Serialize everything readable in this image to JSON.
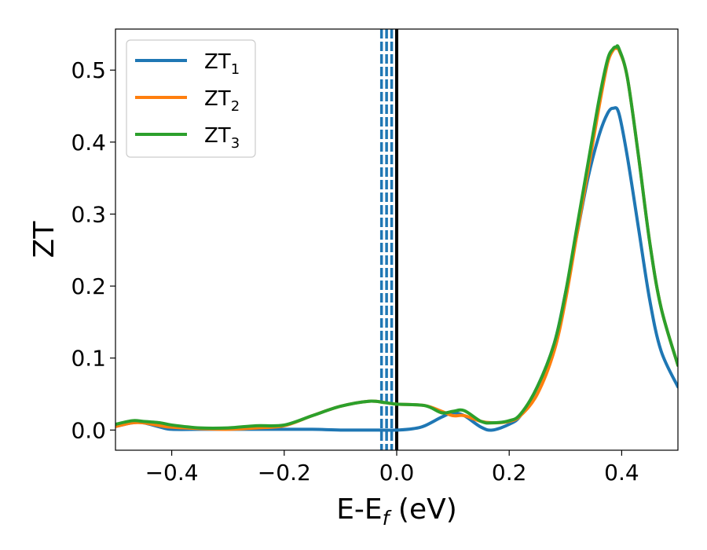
{
  "chart_data": {
    "type": "line",
    "xlabel": {
      "main": "E-E",
      "sub": "f",
      "unit": " (eV)"
    },
    "ylabel": "ZT",
    "xlim": [
      -0.5,
      0.5
    ],
    "ylim": [
      -0.028,
      0.557
    ],
    "xticks": [
      -0.4,
      -0.2,
      0.0,
      0.2,
      0.4
    ],
    "xtick_labels": [
      "−0.4",
      "−0.2",
      "0.0",
      "0.2",
      "0.4"
    ],
    "yticks": [
      0.0,
      0.1,
      0.2,
      0.3,
      0.4,
      0.5
    ],
    "ytick_labels": [
      "0.0",
      "0.1",
      "0.2",
      "0.3",
      "0.4",
      "0.5"
    ],
    "grid": false,
    "legend_position": "top-left",
    "vertical_lines": [
      {
        "x": -0.027,
        "style": "dashed",
        "color": "#1f77b4"
      },
      {
        "x": -0.018,
        "style": "dashed",
        "color": "#1f77b4"
      },
      {
        "x": -0.009,
        "style": "dashed",
        "color": "#1f77b4"
      },
      {
        "x": 0.0,
        "style": "solid",
        "color": "#000000"
      }
    ],
    "series": [
      {
        "name": "ZT",
        "sub": "1",
        "color": "#1f77b4",
        "x": [
          -0.5,
          -0.47,
          -0.45,
          -0.42,
          -0.4,
          -0.35,
          -0.3,
          -0.25,
          -0.2,
          -0.15,
          -0.1,
          -0.05,
          0.0,
          0.03,
          0.05,
          0.08,
          0.1,
          0.12,
          0.15,
          0.17,
          0.2,
          0.22,
          0.25,
          0.28,
          0.3,
          0.32,
          0.34,
          0.36,
          0.375,
          0.385,
          0.395,
          0.41,
          0.43,
          0.45,
          0.47,
          0.5
        ],
        "y": [
          0.005,
          0.01,
          0.01,
          0.004,
          0.001,
          0.001,
          0.001,
          0.001,
          0.001,
          0.001,
          0.0,
          0.0,
          0.0,
          0.002,
          0.006,
          0.018,
          0.024,
          0.02,
          0.004,
          0.0,
          0.008,
          0.02,
          0.06,
          0.12,
          0.19,
          0.27,
          0.35,
          0.41,
          0.44,
          0.447,
          0.44,
          0.38,
          0.28,
          0.18,
          0.11,
          0.06
        ]
      },
      {
        "name": "ZT",
        "sub": "2",
        "color": "#ff7f0e",
        "x": [
          -0.5,
          -0.47,
          -0.45,
          -0.42,
          -0.4,
          -0.35,
          -0.3,
          -0.25,
          -0.2,
          -0.15,
          -0.1,
          -0.05,
          -0.02,
          0.0,
          0.05,
          0.08,
          0.1,
          0.12,
          0.15,
          0.17,
          0.2,
          0.22,
          0.25,
          0.28,
          0.3,
          0.32,
          0.34,
          0.36,
          0.375,
          0.385,
          0.39,
          0.395,
          0.41,
          0.43,
          0.45,
          0.47,
          0.5
        ],
        "y": [
          0.005,
          0.01,
          0.01,
          0.006,
          0.004,
          0.002,
          0.001,
          0.003,
          0.006,
          0.02,
          0.033,
          0.04,
          0.038,
          0.036,
          0.034,
          0.026,
          0.02,
          0.02,
          0.012,
          0.01,
          0.012,
          0.02,
          0.05,
          0.11,
          0.18,
          0.27,
          0.36,
          0.45,
          0.51,
          0.528,
          0.53,
          0.528,
          0.49,
          0.38,
          0.26,
          0.17,
          0.09
        ]
      },
      {
        "name": "ZT",
        "sub": "3",
        "color": "#2ca02c",
        "x": [
          -0.5,
          -0.47,
          -0.45,
          -0.42,
          -0.4,
          -0.35,
          -0.3,
          -0.25,
          -0.2,
          -0.15,
          -0.1,
          -0.05,
          -0.02,
          0.0,
          0.05,
          0.08,
          0.1,
          0.12,
          0.15,
          0.17,
          0.2,
          0.22,
          0.25,
          0.28,
          0.3,
          0.32,
          0.34,
          0.36,
          0.375,
          0.385,
          0.39,
          0.395,
          0.41,
          0.43,
          0.45,
          0.47,
          0.5
        ],
        "y": [
          0.008,
          0.013,
          0.012,
          0.01,
          0.007,
          0.003,
          0.003,
          0.006,
          0.007,
          0.02,
          0.033,
          0.04,
          0.038,
          0.036,
          0.034,
          0.024,
          0.026,
          0.027,
          0.012,
          0.01,
          0.013,
          0.022,
          0.06,
          0.12,
          0.19,
          0.28,
          0.37,
          0.46,
          0.515,
          0.53,
          0.532,
          0.53,
          0.49,
          0.38,
          0.26,
          0.17,
          0.09
        ]
      }
    ]
  }
}
